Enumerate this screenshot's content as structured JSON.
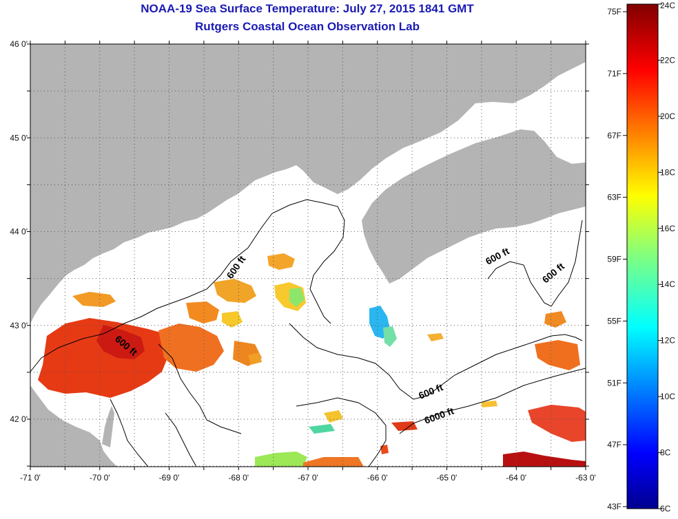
{
  "header": {
    "title": "NOAA-19 Sea Surface Temperature:  July 27, 2015 1841 GMT",
    "subtitle": "Rutgers Coastal Ocean Observation Lab"
  },
  "map": {
    "lat_labels": [
      "46 0'",
      "45 0'",
      "44 0'",
      "43 0'",
      "42 0'"
    ],
    "lon_labels": [
      "-71 0'",
      "-70 0'",
      "-69 0'",
      "-68 0'",
      "-67 0'",
      "-66 0'",
      "-65 0'",
      "-64 0'",
      "-63 0'"
    ],
    "contour_labels": [
      "600 ft",
      "600 ft",
      "600 ft",
      "600 ft",
      "600 ft",
      "6000 ft"
    ],
    "land_color": "#b4b4b4",
    "water_no_data_color": "#ffffff"
  },
  "colorbar": {
    "fahrenheit_labels": [
      "75F",
      "71F",
      "67F",
      "63F",
      "59F",
      "55F",
      "51F",
      "47F",
      "43F"
    ],
    "celsius_labels": [
      "24C",
      "22C",
      "20C",
      "18C",
      "16C",
      "14C",
      "12C",
      "10C",
      "8C",
      "6C"
    ],
    "colormap": "jet"
  }
}
